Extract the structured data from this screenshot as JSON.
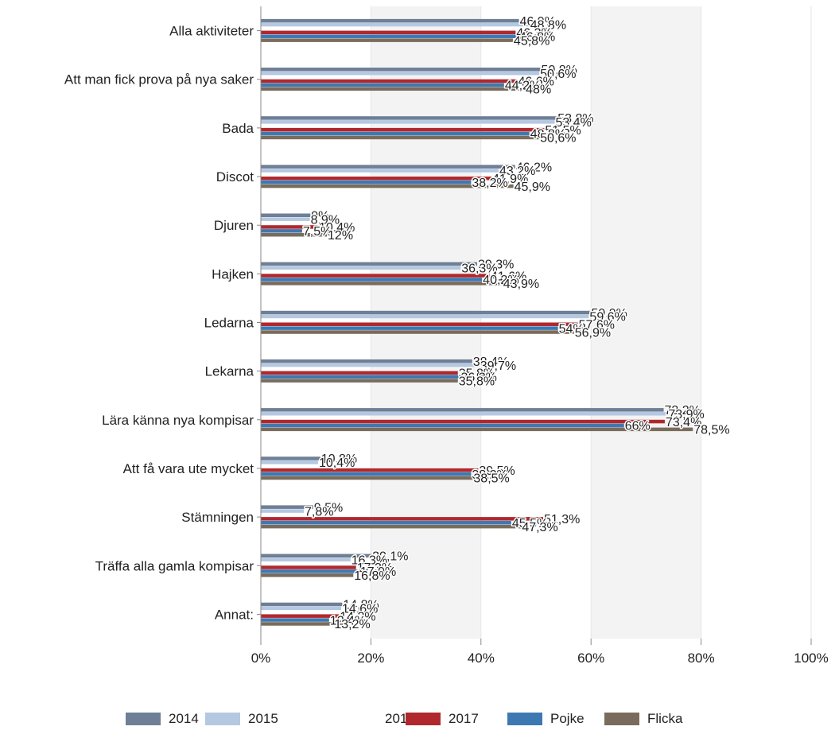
{
  "chart_data": {
    "type": "bar",
    "orientation": "horizontal",
    "title": "",
    "xlabel": "",
    "ylabel": "",
    "xlim": [
      0,
      100
    ],
    "x_ticks": [
      "0%",
      "20%",
      "40%",
      "60%",
      "80%",
      "100%"
    ],
    "x_tick_values": [
      0,
      20,
      40,
      60,
      80,
      100
    ],
    "grid": "alternating vertical bands",
    "legend_position": "bottom",
    "categories": [
      "Alla aktiviteter",
      "Att man fick prova på nya saker",
      "Bada",
      "Discot",
      "Djuren",
      "Hajken",
      "Ledarna",
      "Lekarna",
      "Lära känna nya kompisar",
      "Att få vara ute mycket",
      "Stämningen",
      "Träffa alla gamla kompisar",
      "Annat:"
    ],
    "series": [
      {
        "name": "2014",
        "color": "#6e7f96",
        "values": [
          46.9,
          50.8,
          53.8,
          46.2,
          9,
          39.3,
          59.9,
          38.4,
          73.2,
          10.8,
          9.5,
          20.1,
          14.8
        ],
        "labels": [
          "46,9%",
          "50,8%",
          "53,8%",
          "46,2%",
          "9%",
          "39,3%",
          "59,9%",
          "38,4%",
          "73,2%",
          "10,8%",
          "9,5%",
          "20,1%",
          "14,8%"
        ]
      },
      {
        "name": "2015",
        "color": "#b4c8e1",
        "values": [
          48.8,
          50.6,
          53.4,
          43.2,
          8.9,
          36.3,
          59.6,
          39.7,
          73.9,
          10.4,
          7.8,
          16.3,
          14.6
        ],
        "labels": [
          "48,8%",
          "50,6%",
          "53,4%",
          "43,2%",
          "8,9%",
          "36,3%",
          "59,6%",
          "39,7%",
          "73,9%",
          "10,4%",
          "7,8%",
          "16,3%",
          "14,6%"
        ]
      },
      {
        "name": "2016",
        "color": "#ffffff",
        "values": [
          null,
          null,
          null,
          null,
          null,
          null,
          null,
          null,
          null,
          null,
          null,
          null,
          null
        ],
        "labels": [
          "",
          "",
          "",
          "",
          "",
          "",
          "",
          "",
          "",
          "",
          "",
          "",
          ""
        ]
      },
      {
        "name": "2017",
        "color": "#b0282d",
        "values": [
          46.3,
          46.6,
          51.5,
          41.9,
          10.4,
          41.6,
          57.6,
          35.8,
          73.4,
          39.5,
          51.3,
          17.3,
          14.2
        ],
        "labels": [
          "46,3%",
          "46,6%",
          "51,5%",
          "41,9%",
          "10,4%",
          "41,6%",
          "57,6%",
          "35,8%",
          "73,4%",
          "39,5%",
          "51,3%",
          "17,3%",
          "14,2%"
        ]
      },
      {
        "name": "Pojke",
        "color": "#3e78b2",
        "values": [
          46.8,
          44.2,
          48.8,
          38.2,
          7.5,
          40.2,
          54,
          36.2,
          66,
          38.2,
          45.5,
          17.9,
          12.4
        ],
        "labels": [
          "46,8%",
          "44,2%",
          "48,8%",
          "38,2%",
          "7,5%",
          "40,2%",
          "54%",
          "36,2%",
          "66%",
          "38,2%",
          "45,5%",
          "17,9%",
          "12,4%"
        ]
      },
      {
        "name": "Flicka",
        "color": "#7a6c5c",
        "values": [
          45.8,
          48,
          50.6,
          45.9,
          12,
          43.9,
          56.9,
          35.8,
          78.5,
          38.5,
          47.3,
          16.8,
          13.2
        ],
        "labels": [
          "45,8%",
          "48%",
          "50,6%",
          "45,9%",
          "12%",
          "43,9%",
          "56,9%",
          "35,8%",
          "78,5%",
          "38,5%",
          "47,3%",
          "16,8%",
          "13,2%"
        ]
      }
    ]
  }
}
